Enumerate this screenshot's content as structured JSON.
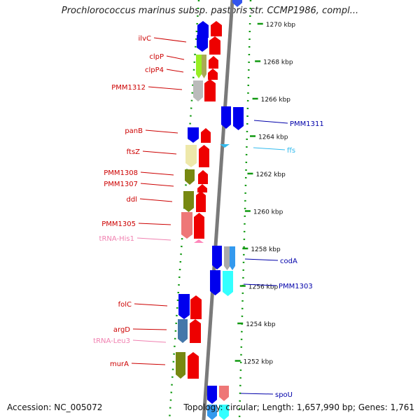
{
  "title": "Prochlorococcus marinus subsp. pastoris str. CCMP1986, compl...",
  "footer": {
    "accession": "Accession: NC_005072",
    "topology": "Topology: circular; Length: 1,657,990 bp; Genes: 1,761"
  },
  "ticks": [
    {
      "label": "1270 kbp",
      "kbp": 1270
    },
    {
      "label": "1268 kbp",
      "kbp": 1268
    },
    {
      "label": "1266 kbp",
      "kbp": 1266
    },
    {
      "label": "1264 kbp",
      "kbp": 1264
    },
    {
      "label": "1262 kbp",
      "kbp": 1262
    },
    {
      "label": "1260 kbp",
      "kbp": 1260
    },
    {
      "label": "1258 kbp",
      "kbp": 1258
    },
    {
      "label": "1256 kbp",
      "kbp": 1256
    },
    {
      "label": "1254 kbp",
      "kbp": 1254
    },
    {
      "label": "1252 kbp",
      "kbp": 1252
    }
  ],
  "genes_left": [
    {
      "name": "ilvC",
      "color": "#cc0000",
      "kbp": 1270.3
    },
    {
      "name": "clpP",
      "color": "#cc0000",
      "kbp": 1269.3
    },
    {
      "name": "clpP4",
      "color": "#cc0000",
      "kbp": 1268.6
    },
    {
      "name": "PMM1312",
      "color": "#cc0000",
      "kbp": 1267.8
    },
    {
      "name": "panB",
      "color": "#cc0000",
      "kbp": 1264.3
    },
    {
      "name": "ftsZ",
      "color": "#cc0000",
      "kbp": 1263.3
    },
    {
      "name": "PMM1308",
      "color": "#cc0000",
      "kbp": 1262.3
    },
    {
      "name": "PMM1307",
      "color": "#cc0000",
      "kbp": 1261.7
    },
    {
      "name": "ddl",
      "color": "#cc0000",
      "kbp": 1261.1
    },
    {
      "name": "PMM1305",
      "color": "#cc0000",
      "kbp": 1260.0
    },
    {
      "name": "tRNA-His1",
      "color": "#f080b0",
      "kbp": 1259.3
    },
    {
      "name": "folC",
      "color": "#cc0000",
      "kbp": 1255.2
    },
    {
      "name": "argD",
      "color": "#cc0000",
      "kbp": 1254.1
    },
    {
      "name": "tRNA-Leu3",
      "color": "#f080b0",
      "kbp": 1253.6
    },
    {
      "name": "murA",
      "color": "#cc0000",
      "kbp": 1252.5
    }
  ],
  "genes_right": [
    {
      "name": "PMM1311",
      "color": "#0000aa",
      "kbp": 1265.1
    },
    {
      "name": "ffs",
      "color": "#33bbee",
      "kbp": 1263.8
    },
    {
      "name": "codA",
      "color": "#0000aa",
      "kbp": 1257.4
    },
    {
      "name": "PMM1303",
      "color": "#0000aa",
      "kbp": 1256.1
    },
    {
      "name": "spoU",
      "color": "#0000aa",
      "kbp": 1250.9
    }
  ]
}
